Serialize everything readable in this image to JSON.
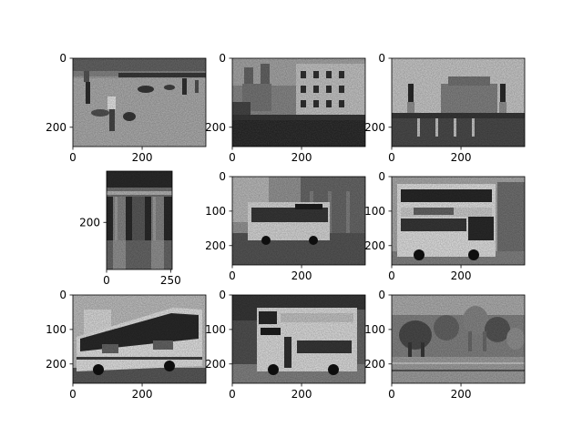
{
  "figure": {
    "background": "#ffffff",
    "colormap": "gray",
    "grid": false,
    "rows": 3,
    "cols": 3
  },
  "chart_data": [
    {
      "type": "heatmap",
      "subject": "beach scene with people playing in the sand",
      "image_width": 384,
      "image_height": 256,
      "xlim": [
        0,
        384
      ],
      "ylim": [
        256,
        0
      ],
      "xticks": [
        "0",
        "200"
      ],
      "yticks": [
        "0",
        "200"
      ],
      "title": "",
      "xlabel": "",
      "ylabel": ""
    },
    {
      "type": "heatmap",
      "subject": "church with twin bell towers above a crowded staircase and buildings",
      "image_width": 384,
      "image_height": 256,
      "xlim": [
        0,
        384
      ],
      "ylim": [
        256,
        0
      ],
      "xticks": [
        "0",
        "200"
      ],
      "yticks": [
        "0",
        "200"
      ],
      "title": "",
      "xlabel": "",
      "ylabel": ""
    },
    {
      "type": "heatmap",
      "subject": "round fortress behind a bridge lined with statues",
      "image_width": 384,
      "image_height": 256,
      "xlim": [
        0,
        384
      ],
      "ylim": [
        256,
        0
      ],
      "xticks": [
        "0",
        "200"
      ],
      "yticks": [
        "0",
        "200"
      ],
      "title": "",
      "xlabel": "",
      "ylabel": ""
    },
    {
      "type": "heatmap",
      "subject": "ancient stone columns",
      "image_width": 256,
      "image_height": 384,
      "xlim": [
        0,
        256
      ],
      "ylim": [
        384,
        0
      ],
      "xticks": [
        "0",
        "250"
      ],
      "yticks": [
        "200"
      ],
      "title": "",
      "xlabel": "",
      "ylabel": ""
    },
    {
      "type": "heatmap",
      "subject": "single-deck city bus on a street",
      "image_width": 384,
      "image_height": 256,
      "xlim": [
        0,
        384
      ],
      "ylim": [
        256,
        0
      ],
      "xticks": [
        "0",
        "200"
      ],
      "yticks": [
        "0",
        "100",
        "200"
      ],
      "title": "",
      "xlabel": "",
      "ylabel": ""
    },
    {
      "type": "heatmap",
      "subject": "double-decker bus",
      "image_width": 384,
      "image_height": 256,
      "xlim": [
        0,
        384
      ],
      "ylim": [
        256,
        0
      ],
      "xticks": [
        "0",
        "200"
      ],
      "yticks": [
        "0",
        "100",
        "200"
      ],
      "title": "",
      "xlabel": "",
      "ylabel": ""
    },
    {
      "type": "heatmap",
      "subject": "coach bus with large side lettering",
      "image_width": 384,
      "image_height": 256,
      "xlim": [
        0,
        384
      ],
      "ylim": [
        256,
        0
      ],
      "xticks": [
        "0",
        "200"
      ],
      "yticks": [
        "0",
        "100",
        "200"
      ],
      "title": "",
      "xlabel": "",
      "ylabel": ""
    },
    {
      "type": "heatmap",
      "subject": "open-top double-decker bus",
      "image_width": 384,
      "image_height": 256,
      "xlim": [
        0,
        384
      ],
      "ylim": [
        256,
        0
      ],
      "xticks": [
        "0",
        "200"
      ],
      "yticks": [
        "0",
        "100",
        "200"
      ],
      "title": "",
      "xlabel": "",
      "ylabel": ""
    },
    {
      "type": "heatmap",
      "subject": "herd of elephants at a watering hole",
      "image_width": 384,
      "image_height": 256,
      "xlim": [
        0,
        384
      ],
      "ylim": [
        256,
        0
      ],
      "xticks": [
        "0",
        "200"
      ],
      "yticks": [
        "0",
        "100",
        "200"
      ],
      "title": "",
      "xlabel": "",
      "ylabel": ""
    }
  ]
}
